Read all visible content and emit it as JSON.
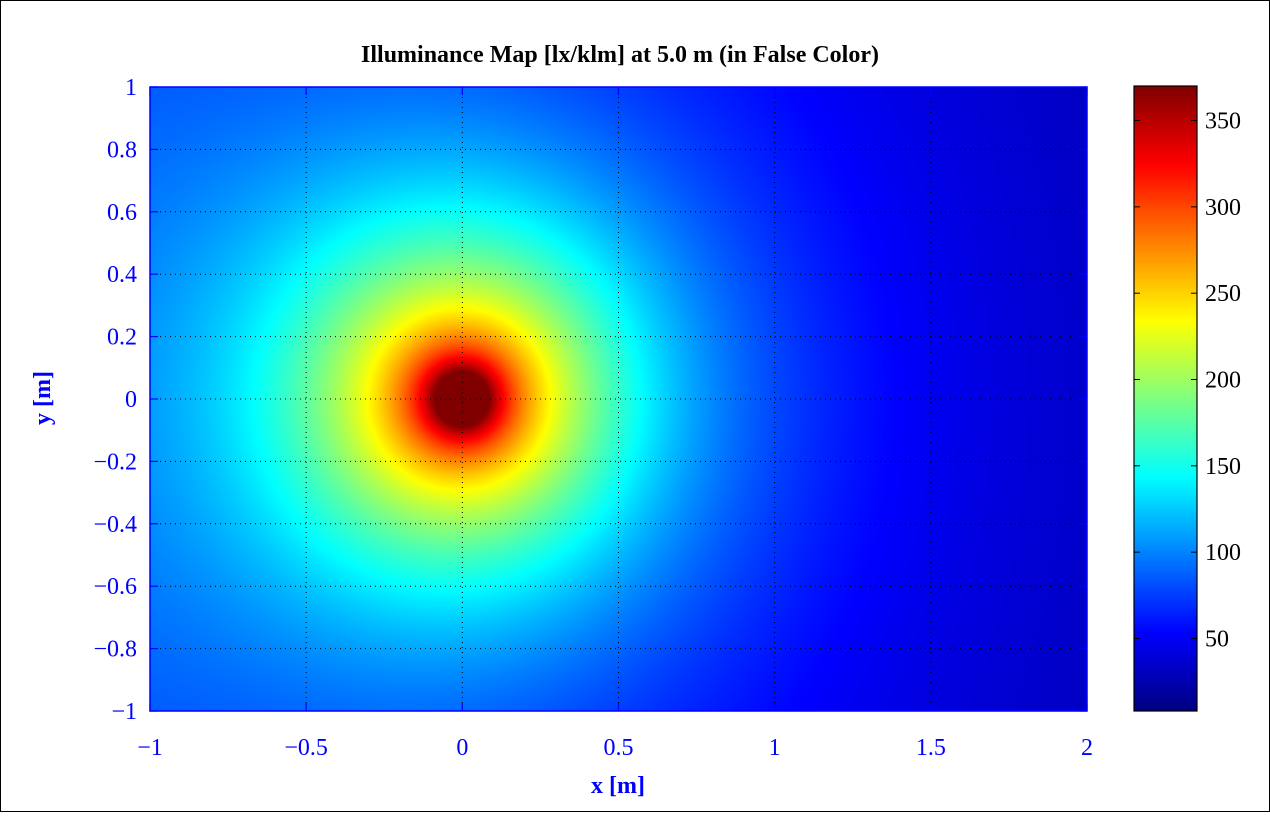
{
  "chart_data": {
    "type": "heatmap",
    "title": "Illuminance Map [lx/klm] at 5.0 m (in False Color)",
    "xlabel": "x [m]",
    "ylabel": "y [m]",
    "xlim": [
      -1,
      2
    ],
    "ylim": [
      -1,
      1
    ],
    "x_ticks": [
      -1,
      -0.5,
      0,
      0.5,
      1,
      1.5,
      2
    ],
    "x_tick_labels": [
      "−1",
      "−0.5",
      "0",
      "0.5",
      "1",
      "1.5",
      "2"
    ],
    "y_ticks": [
      1,
      0.8,
      0.6,
      0.4,
      0.2,
      0,
      -0.2,
      -0.4,
      -0.6,
      -0.8,
      -1
    ],
    "y_tick_labels": [
      "1",
      "0.8",
      "0.6",
      "0.4",
      "0.2",
      "0",
      "−0.2",
      "−0.4",
      "−0.6",
      "−0.8",
      "−1"
    ],
    "grid": true,
    "colormap": "jet",
    "peak": {
      "x": 0,
      "y": 0,
      "value": 370
    },
    "colorbar": {
      "range": [
        8,
        370
      ],
      "ticks": [
        50,
        100,
        150,
        200,
        250,
        300,
        350
      ],
      "tick_labels": [
        "50",
        "100",
        "150",
        "200",
        "250",
        "300",
        "350"
      ]
    },
    "colors": {
      "axis": "#0000ff",
      "title": "#000000",
      "grid": "#000000"
    }
  }
}
